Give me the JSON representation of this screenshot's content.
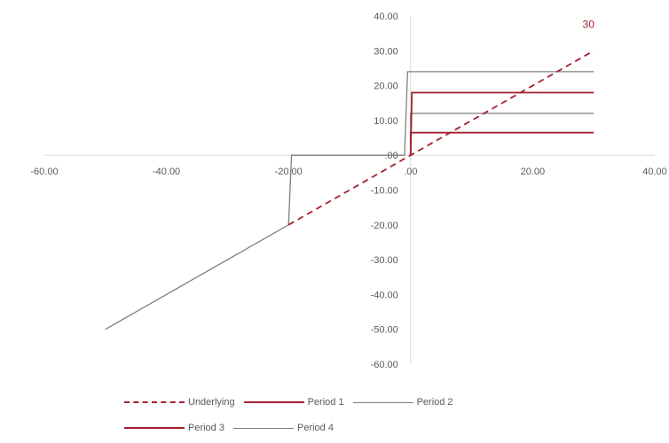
{
  "chart_data": {
    "type": "line",
    "xlim": [
      -60,
      40
    ],
    "ylim": [
      -60,
      40
    ],
    "xticks": [
      -60,
      -40,
      -20,
      0,
      20,
      40
    ],
    "yticks": [
      -60,
      -50,
      -40,
      -30,
      -20,
      -10,
      0,
      10,
      20,
      30,
      40
    ],
    "xtick_labels": [
      "-60.00",
      "-40.00",
      "-20.00",
      ".00",
      "20.00",
      "40.00"
    ],
    "ytick_labels": [
      "-60.00",
      "-50.00",
      "-40.00",
      "-30.00",
      "-20.00",
      "-10.00",
      ".00",
      "10.00",
      "20.00",
      "30.00",
      "40.00"
    ],
    "grid": false,
    "legend_position": "bottom",
    "series": [
      {
        "name": "Underlying",
        "color": "#A5202E",
        "dash": "dashed",
        "points": [
          [
            -20,
            -20
          ],
          [
            30,
            30
          ]
        ]
      },
      {
        "name": "Period 1",
        "color": "#A5202E",
        "dash": "solid",
        "points": [
          [
            0,
            0
          ],
          [
            0,
            6.5
          ],
          [
            30,
            6.5
          ]
        ]
      },
      {
        "name": "Period 2",
        "color": "#7F7F7F",
        "dash": "solid",
        "points": [
          [
            0,
            0
          ],
          [
            0,
            12
          ],
          [
            30,
            12
          ]
        ]
      },
      {
        "name": "Period 3",
        "color": "#A5202E",
        "dash": "solid",
        "points": [
          [
            0,
            0
          ],
          [
            0.2,
            18
          ],
          [
            30,
            18
          ]
        ]
      },
      {
        "name": "Period 4",
        "color": "#7F7F7F",
        "dash": "solid",
        "points": [
          [
            -50,
            -50
          ],
          [
            -20,
            -20
          ],
          [
            -19.5,
            0
          ],
          [
            -1,
            0
          ],
          [
            -0.5,
            24
          ],
          [
            30,
            24
          ]
        ]
      }
    ],
    "annotations": [
      {
        "text": "30",
        "x": 30,
        "y": 30,
        "color": "#A5202E"
      }
    ]
  }
}
